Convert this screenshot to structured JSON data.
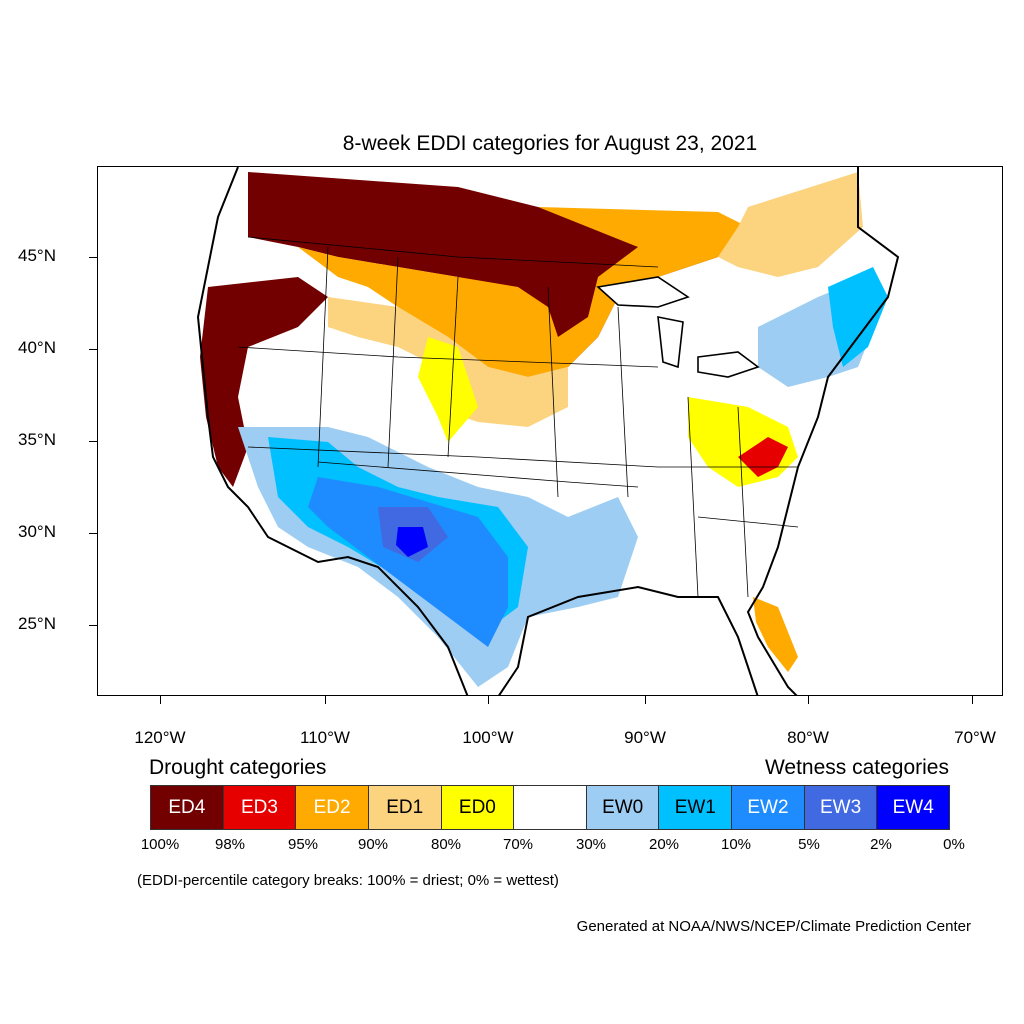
{
  "title": "8-week EDDI categories for August 23, 2021",
  "lat_labels": [
    "45°N",
    "40°N",
    "35°N",
    "30°N",
    "25°N"
  ],
  "lon_labels": [
    "120°W",
    "110°W",
    "100°W",
    "90°W",
    "80°W",
    "70°W"
  ],
  "legend": {
    "drought_heading": "Drought categories",
    "wetness_heading": "Wetness categories",
    "categories": [
      {
        "label": "ED4",
        "color": "#730000",
        "text_color": "#ffffff"
      },
      {
        "label": "ED3",
        "color": "#e60000",
        "text_color": "#ffffff"
      },
      {
        "label": "ED2",
        "color": "#ffaa00",
        "text_color": "#ffffff"
      },
      {
        "label": "ED1",
        "color": "#fcd37f",
        "text_color": "#000000"
      },
      {
        "label": "ED0",
        "color": "#ffff00",
        "text_color": "#000000"
      },
      {
        "label": "",
        "color": "#ffffff",
        "text_color": "#000000"
      },
      {
        "label": "EW0",
        "color": "#9dcdf2",
        "text_color": "#000000"
      },
      {
        "label": "EW1",
        "color": "#00c0ff",
        "text_color": "#000000"
      },
      {
        "label": "EW2",
        "color": "#1e8cff",
        "text_color": "#ffffff"
      },
      {
        "label": "EW3",
        "color": "#4169e1",
        "text_color": "#ffffff"
      },
      {
        "label": "EW4",
        "color": "#0000ff",
        "text_color": "#ffffff"
      }
    ],
    "breaks": [
      "100%",
      "98%",
      "95%",
      "90%",
      "80%",
      "70%",
      "30%",
      "20%",
      "10%",
      "5%",
      "2%",
      "0%"
    ]
  },
  "note": "(EDDI-percentile category breaks: 100% = driest; 0% = wettest)",
  "credit": "Generated at NOAA/NWS/NCEP/Climate Prediction Center"
}
